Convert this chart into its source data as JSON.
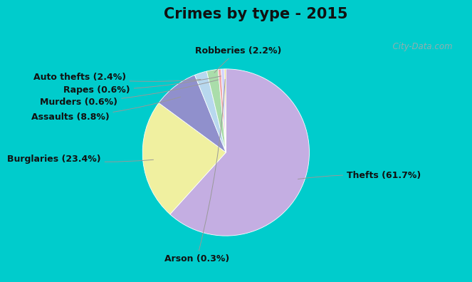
{
  "title": "Crimes by type - 2015",
  "title_fontsize": 15,
  "title_fontweight": "bold",
  "slices": [
    {
      "label": "Thefts (61.7%)",
      "value": 61.7,
      "color": "#C4AEE2"
    },
    {
      "label": "Burglaries (23.4%)",
      "value": 23.4,
      "color": "#F0F0A0"
    },
    {
      "label": "Assaults (8.8%)",
      "value": 8.8,
      "color": "#9090CC"
    },
    {
      "label": "Auto thefts (2.4%)",
      "value": 2.4,
      "color": "#B8D8EE"
    },
    {
      "label": "Robberies (2.2%)",
      "value": 2.2,
      "color": "#AADDAA"
    },
    {
      "label": "Murders (0.6%)",
      "value": 0.6,
      "color": "#F0AAAA"
    },
    {
      "label": "Rapes (0.6%)",
      "value": 0.6,
      "color": "#D0D0FF"
    },
    {
      "label": "Arson (0.3%)",
      "value": 0.3,
      "color": "#E8D890"
    }
  ],
  "bg_top": "#00CCCC",
  "bg_inner_top": "#E8F8F8",
  "bg_inner_bottom": "#D8EED8",
  "label_fontsize": 9,
  "watermark": "  City-Data.com"
}
